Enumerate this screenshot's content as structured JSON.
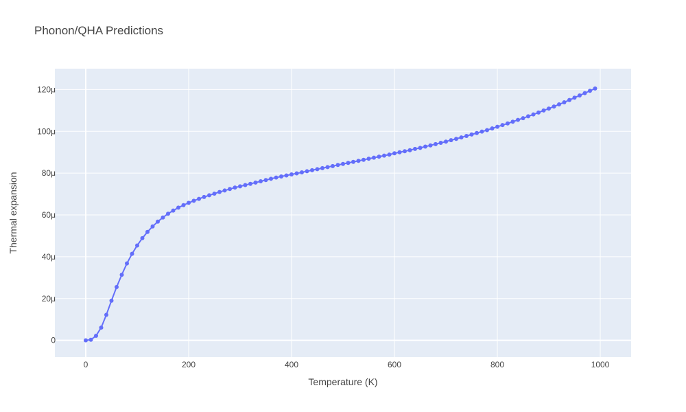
{
  "chart_data": {
    "type": "line",
    "title": "Phonon/QHA Predictions",
    "xlabel": "Temperature (K)",
    "ylabel": "Thermal expansion",
    "xlim": [
      -60,
      1060
    ],
    "ylim": [
      -8,
      130
    ],
    "y_unit_suffix": "μ",
    "xticks": [
      0,
      200,
      400,
      600,
      800,
      1000
    ],
    "yticks": [
      0,
      20,
      40,
      60,
      80,
      100,
      120
    ],
    "xtick_labels": [
      "0",
      "200",
      "400",
      "600",
      "800",
      "1000"
    ],
    "ytick_labels": [
      "0",
      "20μ",
      "40μ",
      "60μ",
      "80μ",
      "100μ",
      "120μ"
    ],
    "grid": true,
    "colors": {
      "series": "#636efa",
      "plot_bg": "#e5ecf6",
      "grid": "#ffffff"
    },
    "series": [
      {
        "x": [
          0,
          10,
          20,
          30,
          40,
          50,
          60,
          70,
          80,
          90,
          100,
          110,
          120,
          130,
          140,
          150,
          160,
          170,
          180,
          190,
          200,
          210,
          220,
          230,
          240,
          250,
          260,
          270,
          280,
          290,
          300,
          310,
          320,
          330,
          340,
          350,
          360,
          370,
          380,
          390,
          400,
          410,
          420,
          430,
          440,
          450,
          460,
          470,
          480,
          490,
          500,
          510,
          520,
          530,
          540,
          550,
          560,
          570,
          580,
          590,
          600,
          610,
          620,
          630,
          640,
          650,
          660,
          670,
          680,
          690,
          700,
          710,
          720,
          730,
          740,
          750,
          760,
          770,
          780,
          790,
          800,
          810,
          820,
          830,
          840,
          850,
          860,
          870,
          880,
          890,
          900,
          910,
          920,
          930,
          940,
          950,
          960,
          970,
          980,
          990
        ],
        "values": [
          0,
          0.3,
          2.2,
          6.1,
          12.2,
          19.0,
          25.5,
          31.4,
          36.8,
          41.4,
          45.4,
          48.9,
          51.9,
          54.5,
          56.8,
          58.8,
          60.6,
          62.1,
          63.5,
          64.7,
          65.8,
          66.8,
          67.7,
          68.6,
          69.4,
          70.2,
          71.0,
          71.7,
          72.4,
          73.1,
          73.7,
          74.3,
          74.9,
          75.5,
          76.1,
          76.7,
          77.3,
          77.9,
          78.4,
          78.9,
          79.4,
          79.9,
          80.4,
          80.9,
          81.4,
          81.9,
          82.4,
          82.9,
          83.4,
          83.9,
          84.4,
          84.9,
          85.4,
          85.9,
          86.4,
          86.9,
          87.4,
          87.9,
          88.4,
          88.9,
          89.5,
          90.0,
          90.5,
          91.0,
          91.6,
          92.1,
          92.7,
          93.3,
          93.9,
          94.5,
          95.1,
          95.8,
          96.4,
          97.1,
          97.8,
          98.5,
          99.2,
          99.9,
          100.6,
          101.4,
          102.2,
          103.0,
          103.8,
          104.6,
          105.5,
          106.3,
          107.2,
          108.1,
          109.0,
          110.0,
          110.9,
          111.9,
          112.9,
          113.9,
          115.0,
          116.1,
          117.2,
          118.3,
          119.4,
          120.5
        ]
      }
    ]
  }
}
